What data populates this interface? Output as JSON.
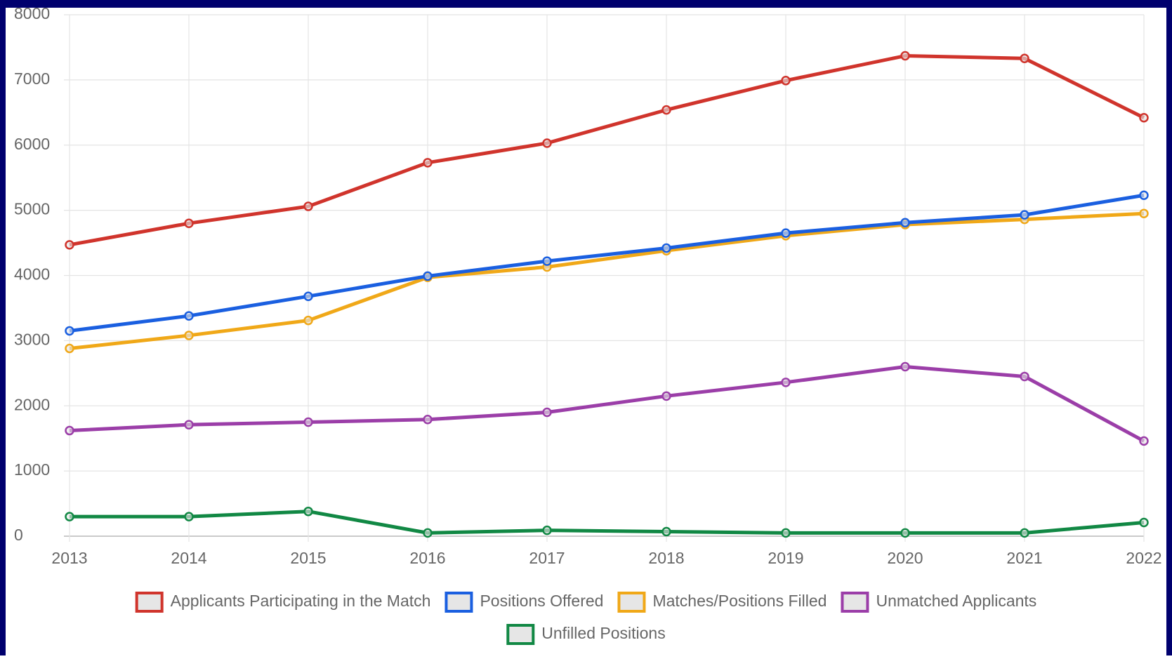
{
  "chart_data": {
    "type": "line",
    "categories": [
      "2013",
      "2014",
      "2015",
      "2016",
      "2017",
      "2018",
      "2019",
      "2020",
      "2021",
      "2022"
    ],
    "series": [
      {
        "name": "Applicants Participating in the Match",
        "color": "#d0342c",
        "values": [
          4470,
          4800,
          5060,
          5730,
          6030,
          6540,
          6990,
          7370,
          7330,
          6420
        ]
      },
      {
        "name": "Positions Offered",
        "color": "#1a5fe0",
        "values": [
          3150,
          3380,
          3680,
          3990,
          4220,
          4420,
          4650,
          4810,
          4930,
          5230
        ]
      },
      {
        "name": "Matches/Positions Filled",
        "color": "#f0a818",
        "values": [
          2880,
          3080,
          3310,
          3970,
          4130,
          4380,
          4610,
          4780,
          4860,
          4950
        ]
      },
      {
        "name": "Unmatched Applicants",
        "color": "#9b3ea8",
        "values": [
          1620,
          1710,
          1750,
          1790,
          1900,
          2150,
          2360,
          2600,
          2450,
          1460
        ]
      },
      {
        "name": "Unfilled Positions",
        "color": "#118844",
        "values": [
          300,
          300,
          380,
          50,
          90,
          70,
          50,
          50,
          50,
          210
        ]
      }
    ],
    "ylim": [
      0,
      8000
    ],
    "yticks": [
      0,
      1000,
      2000,
      3000,
      4000,
      5000,
      6000,
      7000,
      8000
    ],
    "grid": true,
    "legend": "bottom"
  }
}
